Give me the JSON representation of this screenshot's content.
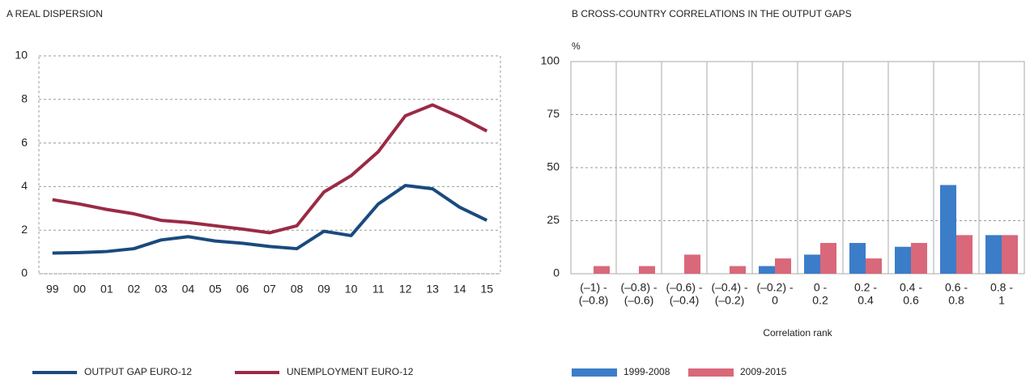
{
  "chart_data": [
    {
      "type": "line",
      "title": "A REAL DISPERSION",
      "categories": [
        "99",
        "00",
        "01",
        "02",
        "03",
        "04",
        "05",
        "06",
        "07",
        "08",
        "09",
        "10",
        "11",
        "12",
        "13",
        "14",
        "15"
      ],
      "series": [
        {
          "name": "OUTPUT GAP EURO-12",
          "color": "#1a4a7e",
          "values": [
            0.95,
            0.97,
            1.02,
            1.15,
            1.55,
            1.7,
            1.5,
            1.4,
            1.25,
            1.15,
            1.95,
            1.75,
            3.2,
            4.05,
            3.9,
            3.05,
            2.45
          ]
        },
        {
          "name": "UNEMPLOYMENT EURO-12",
          "color": "#9b2a45",
          "values": [
            3.4,
            3.2,
            2.95,
            2.75,
            2.45,
            2.35,
            2.2,
            2.05,
            1.88,
            2.2,
            3.75,
            4.5,
            5.6,
            7.25,
            7.75,
            7.2,
            6.55
          ]
        }
      ],
      "ylim": [
        0,
        10
      ],
      "yticks": [
        0,
        2,
        4,
        6,
        8,
        10
      ],
      "grid": true,
      "legend": "bottom"
    },
    {
      "type": "bar",
      "title": "B CROSS-COUNTRY CORRELATIONS IN THE OUTPUT GAPS",
      "y_unit": "%",
      "xlabel": "Correlation rank",
      "categories": [
        [
          "(–1) -",
          "(–0.8)"
        ],
        [
          "(–0.8) -",
          "(–0.6)"
        ],
        [
          "(–0.6) -",
          "(–0.4)"
        ],
        [
          "(–0.4) -",
          "(–0.2)"
        ],
        [
          "(–0.2) -",
          "0"
        ],
        [
          "0 -",
          "0.2"
        ],
        [
          "0.2 -",
          "0.4"
        ],
        [
          "0.4 -",
          "0.6"
        ],
        [
          "0.6 -",
          "0.8"
        ],
        [
          "0.8 -",
          "1"
        ]
      ],
      "series": [
        {
          "name": "1999-2008",
          "color": "#3b7dc8",
          "values": [
            0,
            0,
            0,
            0,
            3.6,
            9,
            14.5,
            12.7,
            41.8,
            18.2
          ]
        },
        {
          "name": "2009-2015",
          "color": "#d9687a",
          "values": [
            3.6,
            3.6,
            9,
            3.6,
            7.2,
            14.5,
            7.2,
            14.5,
            18.2,
            18.2
          ]
        }
      ],
      "ylim": [
        0,
        100
      ],
      "yticks": [
        0,
        25,
        50,
        75,
        100
      ],
      "grid": true,
      "legend": "bottom"
    }
  ]
}
